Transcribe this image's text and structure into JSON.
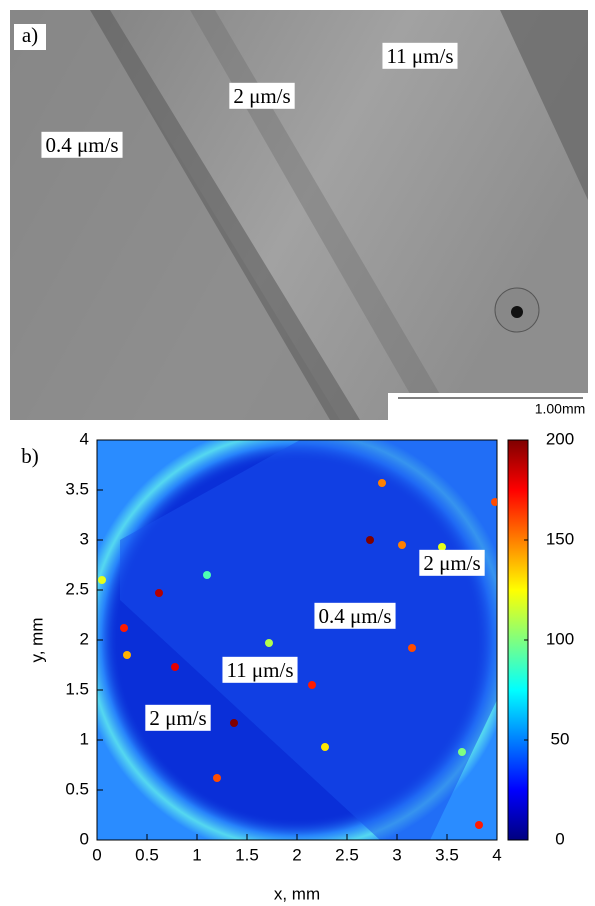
{
  "panel_a": {
    "label": "a)",
    "annotations": [
      "11 μm/s",
      "2 μm/s",
      "0.4  μm/s"
    ],
    "scale_bar": "1.00mm"
  },
  "chart_data": {
    "type": "heatmap",
    "label": "b)",
    "xlabel": "x, mm",
    "ylabel": "y, mm",
    "xlim": [
      0,
      4
    ],
    "ylim": [
      0,
      4
    ],
    "xticks": [
      0,
      0.5,
      1,
      1.5,
      2,
      2.5,
      3,
      3.5,
      4
    ],
    "yticks": [
      0,
      0.5,
      1,
      1.5,
      2,
      2.5,
      3,
      3.5,
      4
    ],
    "colormap": "jet",
    "clim": [
      0,
      200
    ],
    "cticks": [
      0,
      50,
      100,
      150,
      200
    ],
    "annotations": [
      "2 μm/s",
      "0.4  μm/s",
      "11 μm/s",
      "2 μm/s"
    ],
    "points": {
      "x": [
        2.73,
        1.37,
        0.62,
        0.78,
        2.15,
        0.27,
        3.15,
        3.82,
        2.85,
        3.05,
        0.3,
        1.2,
        2.28,
        1.72,
        3.65,
        3.45,
        0.05,
        3.98,
        1.1
      ],
      "y": [
        3.0,
        1.17,
        2.47,
        1.73,
        1.55,
        2.12,
        1.92,
        0.15,
        3.57,
        2.95,
        1.85,
        0.62,
        0.93,
        1.97,
        0.88,
        2.93,
        2.6,
        3.38,
        2.65
      ],
      "values": [
        200,
        200,
        190,
        180,
        170,
        170,
        160,
        170,
        150,
        150,
        140,
        160,
        130,
        110,
        100,
        120,
        120,
        160,
        90
      ]
    }
  }
}
